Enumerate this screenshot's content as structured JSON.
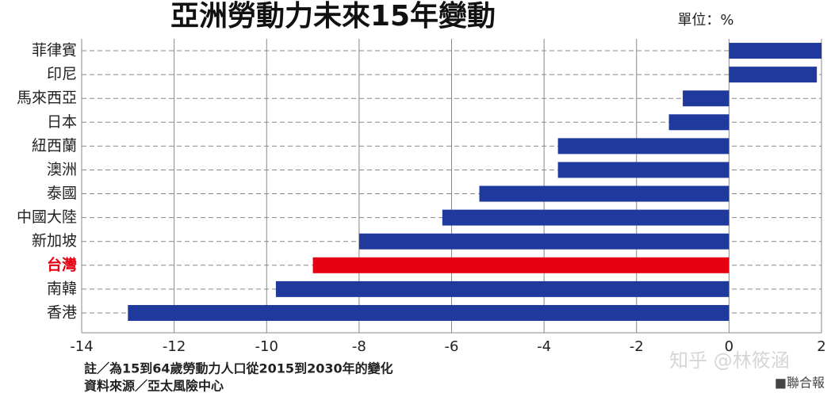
{
  "chart_data": {
    "type": "bar",
    "orientation": "horizontal",
    "title": "亞洲勞動力未來15年變動",
    "unit_note": "單位：%",
    "notes": [
      "註／為15到64歲勞動力人口從2015到2030年的變化",
      "資料來源／亞太風險中心"
    ],
    "credit": "■聯合報",
    "watermark": "知乎 @林筱涵",
    "categories": [
      "菲律賓",
      "印尼",
      "馬來西亞",
      "日本",
      "紐西蘭",
      "澳洲",
      "泰國",
      "中國大陸",
      "新加坡",
      "台灣",
      "南韓",
      "香港"
    ],
    "values": [
      2.0,
      1.9,
      -1.0,
      -1.3,
      -3.7,
      -3.7,
      -5.4,
      -6.2,
      -8.0,
      -9.0,
      -9.8,
      -13.0
    ],
    "colors": [
      "#1f3a9c",
      "#1f3a9c",
      "#1f3a9c",
      "#1f3a9c",
      "#1f3a9c",
      "#1f3a9c",
      "#1f3a9c",
      "#1f3a9c",
      "#1f3a9c",
      "#e60012",
      "#1f3a9c",
      "#1f3a9c"
    ],
    "label_colors": [
      "#222222",
      "#222222",
      "#222222",
      "#222222",
      "#222222",
      "#222222",
      "#222222",
      "#222222",
      "#222222",
      "#e60012",
      "#222222",
      "#222222"
    ],
    "xlim": [
      -14,
      2
    ],
    "xticks": [
      -14,
      -12,
      -10,
      -8,
      -6,
      -4,
      -2,
      0,
      2
    ],
    "grid": true
  }
}
